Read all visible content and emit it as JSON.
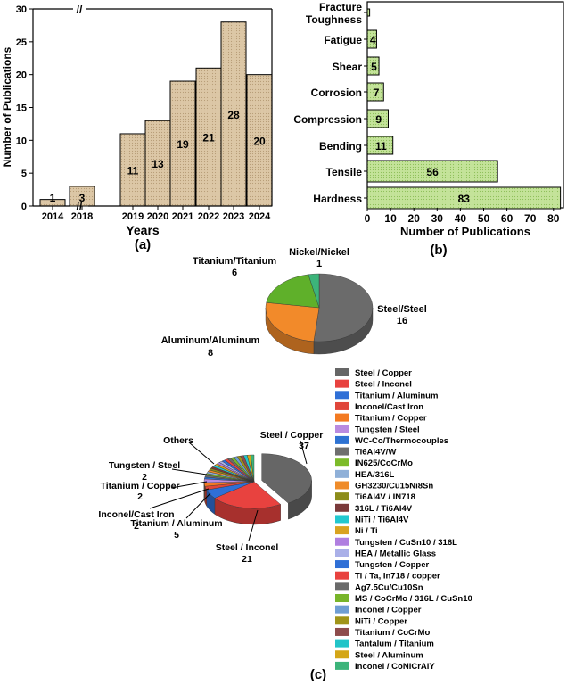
{
  "colors": {
    "bar_a": "#dcc7a6",
    "bar_b": "#b9dc8a",
    "pie_b_steel": "#6b6b6b",
    "pie_b_aluminum": "#f28a2a",
    "pie_b_titanium": "#5fb02a",
    "pie_b_nickel": "#3cb47a"
  },
  "chart_data": [
    {
      "type": "bar",
      "panel": "(a)",
      "categories": [
        "2014",
        "2018",
        "2019",
        "2020",
        "2021",
        "2022",
        "2023",
        "2024"
      ],
      "values": [
        1,
        3,
        11,
        13,
        19,
        21,
        28,
        20
      ],
      "data_labels": [
        "1",
        "3",
        "11",
        "13",
        "19",
        "21",
        "28",
        "20"
      ],
      "xlabel": "Years",
      "ylabel": "Number of Publications",
      "ylim": [
        0,
        30
      ],
      "yticks": [
        "0",
        "5",
        "10",
        "15",
        "20",
        "25",
        "30"
      ],
      "axis_break": "//",
      "grid": false
    },
    {
      "type": "bar",
      "orientation": "horizontal",
      "panel": "(b)",
      "categories": [
        "Fracture Toughness",
        "Fatigue",
        "Shear",
        "Corrosion",
        "Compression",
        "Bending",
        "Tensile",
        "Hardness"
      ],
      "category_lines": [
        [
          "Fracture",
          "Toughness"
        ],
        [
          "Fatigue"
        ],
        [
          "Shear"
        ],
        [
          "Corrosion"
        ],
        [
          "Compression"
        ],
        [
          "Bending"
        ],
        [
          "Tensile"
        ],
        [
          "Hardness"
        ]
      ],
      "values": [
        1,
        4,
        5,
        7,
        9,
        11,
        56,
        83
      ],
      "data_labels": [
        "1",
        "4",
        "5",
        "7",
        "9",
        "11",
        "56",
        "83"
      ],
      "xlabel": "Number of Publications",
      "xlim": [
        0,
        84
      ],
      "xticks": [
        "0",
        "10",
        "20",
        "30",
        "40",
        "50",
        "60",
        "70",
        "80"
      ],
      "grid": false
    },
    {
      "type": "pie",
      "style": "3d",
      "labels": [
        "Steel/Steel",
        "Aluminum/Aluminum",
        "Titanium/Titanium",
        "Nickel/Nickel"
      ],
      "values": [
        16,
        8,
        6,
        1
      ],
      "value_labels": [
        "16",
        "8",
        "6",
        "1"
      ]
    },
    {
      "type": "pie",
      "style": "3d",
      "panel": "(c)",
      "legend_position": "right",
      "labels": [
        "Steel / Copper",
        "Steel / Inconel",
        "Titanium / Aluminum",
        "Inconel/Cast Iron",
        "Titanium / Copper",
        "Tungsten / Steel",
        "WC-Co/Thermocouples",
        "Ti6Al4V/W",
        "IN625/CoCrMo",
        "HEA/316L",
        "GH3230/Cu15Ni8Sn",
        "Ti6Al4V / IN718",
        "316L / Ti6Al4V",
        "NiTi / Ti6Al4V",
        "Ni / Ti",
        "Tungsten / CuSn10 / 316L",
        "HEA / Metallic Glass",
        "Tungsten / Copper",
        "Ti / Ta, In718 / copper",
        "Ag7.5Cu/Cu10Sn",
        "MS / CoCrMo / 316L / CuSn10",
        "Inconel / Copper",
        "NiTi / Copper",
        "Titanium / CoCrMo",
        "Tantalum / Titanium",
        "Steel / Aluminum",
        "Inconel / CoNiCrAlY"
      ],
      "values": [
        37,
        21,
        5,
        2,
        2,
        2,
        1,
        1,
        1,
        1,
        1,
        1,
        1,
        1,
        1,
        1,
        1,
        1,
        1,
        1,
        1,
        1,
        1,
        1,
        1,
        1,
        1
      ],
      "colors": [
        "#666666",
        "#e8423f",
        "#2f6fd6",
        "#e0463a",
        "#f37a22",
        "#b98be0",
        "#2e72d2",
        "#6e6e6e",
        "#7cbb2a",
        "#8fb0d8",
        "#ef8c2a",
        "#8c8c1a",
        "#7a3a3a",
        "#22c8cf",
        "#d9a320",
        "#b07fe0",
        "#aab0e8",
        "#2f6fd6",
        "#e8423f",
        "#6a6a6a",
        "#78b52a",
        "#6f9ed3",
        "#a09418",
        "#8e4c4c",
        "#22c4c8",
        "#d4a617",
        "#3cb47a"
      ],
      "callouts": [
        {
          "label": "Steel / Copper",
          "value": "37"
        },
        {
          "label": "Steel / Inconel",
          "value": "21"
        },
        {
          "label": "Titanium / Aluminum",
          "value": "5"
        },
        {
          "label": "Inconel/Cast Iron",
          "value": "2"
        },
        {
          "label": "Titanium / Copper",
          "value": "2"
        },
        {
          "label": "Tungsten / Steel",
          "value": "2"
        },
        {
          "label": "Others",
          "value": ""
        }
      ]
    }
  ]
}
